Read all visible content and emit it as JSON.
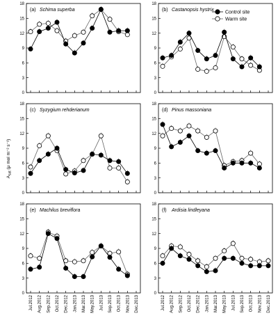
{
  "figure": {
    "ylabel": "A_sat (μ mol m⁻² s⁻¹)",
    "ylabel_main": "A",
    "ylabel_sub": "sat",
    "ylabel_units": " (μ mol m⁻² s⁻¹)",
    "legend": {
      "control": "Control site",
      "warm": "Warm site",
      "placement": "top-right of panel (b)"
    },
    "colors": {
      "control": "#000000",
      "warm": "#ffffff",
      "line_control": "#000000",
      "line_warm": "#666666"
    }
  },
  "chart_data": [
    {
      "type": "line",
      "panel": "(a)",
      "species": "Schima superba",
      "x": [
        "Jul.2012",
        "Aug.2012",
        "Sep.2012",
        "Oct.2012",
        "Dec.2012",
        "Jan.2013",
        "Mar.2013",
        "May.2013",
        "Jul.2013",
        "Sep.2013",
        "Oct.2013",
        "Nov.2013",
        "Dec.2013"
      ],
      "ylim": [
        0,
        18
      ],
      "series": [
        {
          "name": "Control site",
          "values": [
            8.8,
            12.3,
            13.0,
            14.2,
            9.8,
            8.0,
            10.0,
            13.0,
            16.8,
            12.2,
            12.5,
            12.5,
            null
          ]
        },
        {
          "name": "Warm site",
          "values": [
            12.3,
            13.8,
            14.0,
            12.5,
            10.4,
            11.5,
            12.2,
            15.5,
            16.8,
            14.8,
            12.3,
            11.7,
            null
          ]
        }
      ]
    },
    {
      "type": "line",
      "panel": "(b)",
      "species": "Castanopsis hystrix",
      "x": [
        "Jul.2012",
        "Aug.2012",
        "Sep.2012",
        "Oct.2012",
        "Dec.2012",
        "Jan.2013",
        "Mar.2013",
        "May.2013",
        "Jul.2013",
        "Sep.2013",
        "Oct.2013",
        "Nov.2013",
        "Dec.2013"
      ],
      "ylim": [
        0,
        18
      ],
      "series": [
        {
          "name": "Control site",
          "values": [
            7.0,
            7.5,
            10.2,
            12.0,
            8.5,
            6.8,
            7.5,
            12.2,
            6.8,
            5.2,
            7.0,
            5.2,
            null
          ]
        },
        {
          "name": "Warm site",
          "values": [
            5.3,
            7.2,
            8.8,
            11.0,
            4.7,
            4.3,
            5.0,
            11.3,
            9.2,
            6.8,
            5.5,
            4.5,
            null
          ]
        }
      ]
    },
    {
      "type": "line",
      "panel": "(c)",
      "species": "Syzygium rehderianum",
      "x": [
        "Jul.2012",
        "Aug.2012",
        "Sep.2012",
        "Oct.2012",
        "Dec.2012",
        "Jan.2013",
        "Mar.2013",
        "May.2013",
        "Jul.2013",
        "Sep.2013",
        "Oct.2013",
        "Nov.2013",
        "Dec.2013"
      ],
      "ylim": [
        0,
        18
      ],
      "series": [
        {
          "name": "Control site",
          "values": [
            3.9,
            6.5,
            7.8,
            9.0,
            4.7,
            4.0,
            4.5,
            7.8,
            7.6,
            6.5,
            6.3,
            3.9,
            null
          ]
        },
        {
          "name": "Warm site",
          "values": [
            5.2,
            9.5,
            11.5,
            8.5,
            3.8,
            4.4,
            6.5,
            7.8,
            11.5,
            5.0,
            5.0,
            2.2,
            null
          ]
        }
      ]
    },
    {
      "type": "line",
      "panel": "(d)",
      "species": "Pinus massoniana",
      "x": [
        "Jul.2012",
        "Aug.2012",
        "Sep.2012",
        "Oct.2012",
        "Dec.2012",
        "Jan.2013",
        "Mar.2013",
        "May.2013",
        "Jul.2013",
        "Sep.2013",
        "Oct.2013",
        "Nov.2013",
        "Dec.2013"
      ],
      "ylim": [
        0,
        18
      ],
      "series": [
        {
          "name": "Control site",
          "values": [
            13.8,
            9.3,
            10.2,
            11.5,
            8.5,
            8.0,
            8.5,
            5.0,
            6.0,
            6.0,
            6.0,
            5.0,
            null
          ]
        },
        {
          "name": "Warm site",
          "values": [
            11.5,
            13.0,
            12.5,
            13.5,
            12.5,
            11.2,
            12.5,
            5.5,
            6.3,
            6.5,
            8.0,
            5.8,
            null
          ]
        }
      ]
    },
    {
      "type": "line",
      "panel": "(e)",
      "species": "Machilus breviflora",
      "x": [
        "Jul.2012",
        "Aug.2012",
        "Sep.2012",
        "Oct.2012",
        "Dec.2012",
        "Jan.2013",
        "Mar.2013",
        "May.2013",
        "Jul.2013",
        "Sep.2013",
        "Oct.2013",
        "Nov.2013",
        "Dec.2013"
      ],
      "ylim": [
        0,
        18
      ],
      "series": [
        {
          "name": "Control site",
          "values": [
            4.8,
            5.2,
            12.0,
            11.0,
            5.0,
            3.3,
            3.3,
            7.3,
            9.5,
            7.2,
            4.8,
            3.5,
            null
          ]
        },
        {
          "name": "Warm site",
          "values": [
            7.5,
            7.0,
            12.3,
            11.5,
            6.5,
            6.3,
            6.5,
            8.2,
            9.5,
            8.0,
            8.3,
            3.8,
            null
          ]
        }
      ]
    },
    {
      "type": "line",
      "panel": "(f)",
      "species": "Ardisia lindleyana",
      "x": [
        "Jul.2012",
        "Aug.2012",
        "Sep.2012",
        "Oct.2012",
        "Dec.2012",
        "Jan.2013",
        "Mar.2013",
        "May.2013",
        "Jul.2013",
        "Sep.2013",
        "Oct.2013",
        "Nov.2013",
        "Dec.2013"
      ],
      "ylim": [
        0,
        18
      ],
      "series": [
        {
          "name": "Control site",
          "values": [
            6.0,
            9.0,
            7.5,
            6.8,
            5.5,
            4.3,
            4.5,
            7.0,
            7.0,
            6.0,
            5.5,
            5.5,
            5.5
          ]
        },
        {
          "name": "Warm site",
          "values": [
            7.5,
            9.5,
            9.3,
            7.8,
            6.5,
            5.3,
            7.0,
            8.5,
            10.0,
            7.0,
            6.8,
            6.3,
            6.5
          ]
        }
      ]
    }
  ]
}
